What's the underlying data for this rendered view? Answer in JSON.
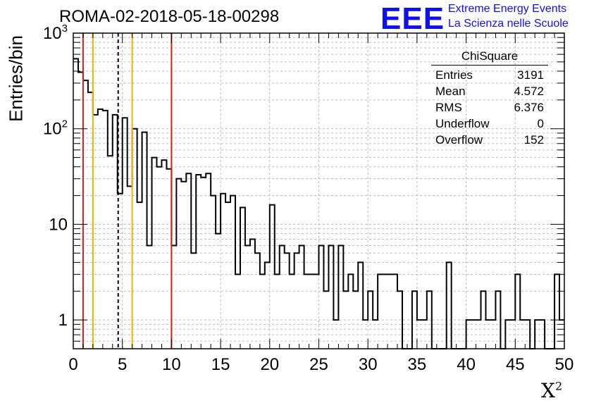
{
  "header": {
    "run_title": "ROMA-02-2018-05-18-00298",
    "logo_text": "EEE",
    "logo_line1": "Extreme Energy Events",
    "logo_line2": "La Scienza nelle Scuole"
  },
  "stats": {
    "title": "ChiSquare",
    "rows": [
      {
        "label": "Entries",
        "value": "3191"
      },
      {
        "label": "Mean",
        "value": "4.572"
      },
      {
        "label": "RMS",
        "value": "6.376"
      },
      {
        "label": "Underflow",
        "value": "0"
      },
      {
        "label": "Overflow",
        "value": "152"
      }
    ]
  },
  "chart_data": {
    "type": "histogram",
    "xlabel": "X",
    "xlabel_sup": "2",
    "ylabel": "Entries/bin",
    "xlim": [
      0,
      50
    ],
    "ylim": [
      0.5,
      1000
    ],
    "yscale": "log",
    "grid": true,
    "bin_width": 0.5,
    "x_ticks": [
      0,
      5,
      10,
      15,
      20,
      25,
      30,
      35,
      40,
      45,
      50
    ],
    "y_ticks": [
      {
        "value": 1,
        "label": "1"
      },
      {
        "value": 10,
        "label": "10"
      },
      {
        "value": 100,
        "label": "10",
        "exp": "2"
      },
      {
        "value": 1000,
        "label": "10",
        "exp": "3"
      }
    ],
    "counts": [
      540,
      390,
      320,
      240,
      140,
      160,
      155,
      52,
      140,
      21,
      130,
      25,
      100,
      17,
      92,
      6,
      50,
      40,
      47,
      38,
      6,
      30,
      28,
      34,
      5,
      33,
      31,
      34,
      20,
      8,
      21,
      17,
      20,
      3,
      15,
      6,
      7,
      5,
      3,
      4,
      16,
      3,
      6,
      5,
      3,
      5,
      6,
      3,
      3,
      3,
      6,
      2,
      6,
      1,
      6,
      2,
      3,
      2,
      4,
      1,
      2,
      1,
      3,
      3,
      3,
      3,
      2,
      0,
      0,
      2,
      1,
      1,
      2,
      0,
      0,
      0,
      4,
      0,
      0,
      0,
      1,
      1,
      1,
      2,
      1,
      1,
      2,
      0,
      1,
      1,
      3,
      1,
      1,
      0,
      1,
      1,
      0,
      0,
      3,
      1
    ],
    "vertical_lines": [
      {
        "x": 1,
        "color": "#d62020",
        "style": "solid"
      },
      {
        "x": 2,
        "color": "#f0b400",
        "style": "solid"
      },
      {
        "x": 4.572,
        "color": "#000000",
        "style": "dashed"
      },
      {
        "x": 6,
        "color": "#f0b400",
        "style": "solid"
      },
      {
        "x": 10,
        "color": "#d62020",
        "style": "solid"
      }
    ]
  }
}
